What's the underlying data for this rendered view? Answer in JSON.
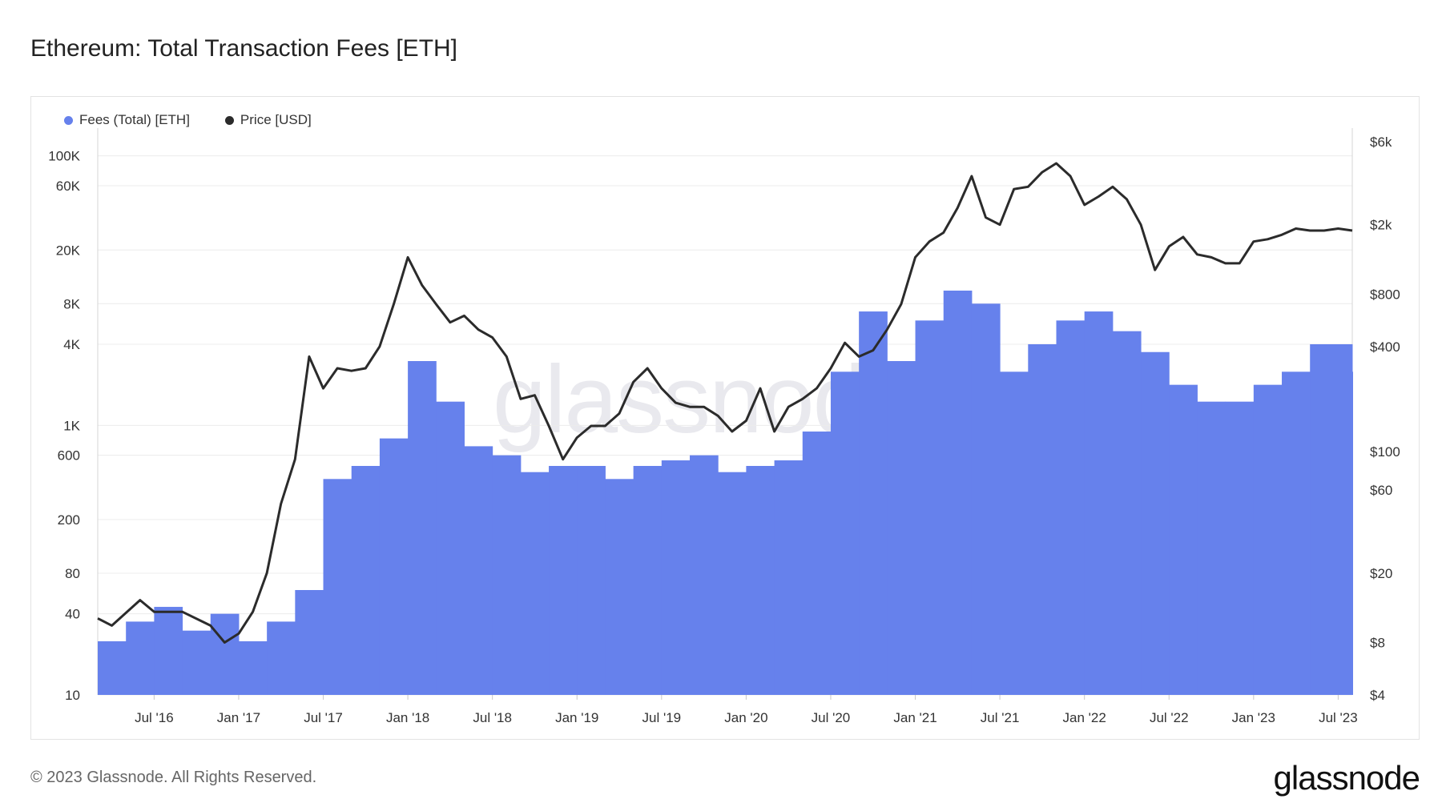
{
  "title": "Ethereum: Total Transaction Fees [ETH]",
  "footer": {
    "copyright": "© 2023 Glassnode. All Rights Reserved.",
    "brand": "glassnode"
  },
  "watermark": "glassnode",
  "colors": {
    "fees": "#6681ec",
    "price": "#2b2b2b",
    "grid": "#ececec"
  },
  "chart_data": {
    "type": "bar",
    "title": "Ethereum: Total Transaction Fees [ETH]",
    "legend_position": "top-left",
    "grid": true,
    "x_range": [
      "2016-03",
      "2023-08"
    ],
    "x_ticks": [
      {
        "label": "Jul '16",
        "date": "2016-07"
      },
      {
        "label": "Jan '17",
        "date": "2017-01"
      },
      {
        "label": "Jul '17",
        "date": "2017-07"
      },
      {
        "label": "Jan '18",
        "date": "2018-01"
      },
      {
        "label": "Jul '18",
        "date": "2018-07"
      },
      {
        "label": "Jan '19",
        "date": "2019-01"
      },
      {
        "label": "Jul '19",
        "date": "2019-07"
      },
      {
        "label": "Jan '20",
        "date": "2020-01"
      },
      {
        "label": "Jul '20",
        "date": "2020-07"
      },
      {
        "label": "Jan '21",
        "date": "2021-01"
      },
      {
        "label": "Jul '21",
        "date": "2021-07"
      },
      {
        "label": "Jan '22",
        "date": "2022-01"
      },
      {
        "label": "Jul '22",
        "date": "2022-07"
      },
      {
        "label": "Jan '23",
        "date": "2023-01"
      },
      {
        "label": "Jul '23",
        "date": "2023-07"
      }
    ],
    "y_left": {
      "scale": "log",
      "range": [
        10,
        150000
      ],
      "ticks": [
        {
          "label": "100K",
          "value": 100000
        },
        {
          "label": "60K",
          "value": 60000
        },
        {
          "label": "20K",
          "value": 20000
        },
        {
          "label": "8K",
          "value": 8000
        },
        {
          "label": "4K",
          "value": 4000
        },
        {
          "label": "1K",
          "value": 1000
        },
        {
          "label": "600",
          "value": 600
        },
        {
          "label": "200",
          "value": 200
        },
        {
          "label": "80",
          "value": 80
        },
        {
          "label": "40",
          "value": 40
        },
        {
          "label": "10",
          "value": 10
        }
      ]
    },
    "y_right": {
      "scale": "log",
      "range": [
        4,
        6800
      ],
      "ticks": [
        {
          "label": "$6k",
          "value": 6000
        },
        {
          "label": "$2k",
          "value": 2000
        },
        {
          "label": "$800",
          "value": 800
        },
        {
          "label": "$400",
          "value": 400
        },
        {
          "label": "$100",
          "value": 100
        },
        {
          "label": "$60",
          "value": 60
        },
        {
          "label": "$20",
          "value": 20
        },
        {
          "label": "$8",
          "value": 8
        },
        {
          "label": "$4",
          "value": 4
        }
      ]
    },
    "series": [
      {
        "name": "Fees (Total) [ETH]",
        "type": "bar",
        "axis": "left",
        "x": [
          "2016-03",
          "2016-05",
          "2016-07",
          "2016-09",
          "2016-11",
          "2017-01",
          "2017-03",
          "2017-05",
          "2017-07",
          "2017-09",
          "2017-11",
          "2018-01",
          "2018-03",
          "2018-05",
          "2018-07",
          "2018-09",
          "2018-11",
          "2019-01",
          "2019-03",
          "2019-05",
          "2019-07",
          "2019-09",
          "2019-11",
          "2020-01",
          "2020-03",
          "2020-05",
          "2020-07",
          "2020-09",
          "2020-11",
          "2021-01",
          "2021-03",
          "2021-05",
          "2021-07",
          "2021-09",
          "2021-11",
          "2022-01",
          "2022-03",
          "2022-05",
          "2022-07",
          "2022-09",
          "2022-11",
          "2023-01",
          "2023-03",
          "2023-05",
          "2023-08"
        ],
        "values": [
          25,
          35,
          45,
          30,
          40,
          25,
          35,
          60,
          400,
          500,
          800,
          3000,
          1500,
          700,
          600,
          450,
          500,
          500,
          400,
          500,
          550,
          600,
          450,
          500,
          550,
          900,
          2500,
          7000,
          3000,
          6000,
          10000,
          8000,
          2500,
          4000,
          6000,
          7000,
          5000,
          3500,
          2000,
          1500,
          1500,
          2000,
          2500,
          4000,
          2500
        ]
      },
      {
        "name": "Price [USD]",
        "type": "line",
        "axis": "right",
        "x": [
          "2016-03",
          "2016-04",
          "2016-06",
          "2016-07",
          "2016-09",
          "2016-11",
          "2016-12",
          "2017-01",
          "2017-02",
          "2017-03",
          "2017-04",
          "2017-05",
          "2017-06",
          "2017-07",
          "2017-08",
          "2017-09",
          "2017-10",
          "2017-11",
          "2017-12",
          "2018-01",
          "2018-02",
          "2018-03",
          "2018-04",
          "2018-05",
          "2018-06",
          "2018-07",
          "2018-08",
          "2018-09",
          "2018-10",
          "2018-11",
          "2018-12",
          "2019-01",
          "2019-02",
          "2019-03",
          "2019-04",
          "2019-05",
          "2019-06",
          "2019-07",
          "2019-08",
          "2019-09",
          "2019-10",
          "2019-11",
          "2019-12",
          "2020-01",
          "2020-02",
          "2020-03",
          "2020-04",
          "2020-05",
          "2020-06",
          "2020-07",
          "2020-08",
          "2020-09",
          "2020-10",
          "2020-11",
          "2020-12",
          "2021-01",
          "2021-02",
          "2021-03",
          "2021-04",
          "2021-05",
          "2021-06",
          "2021-07",
          "2021-08",
          "2021-09",
          "2021-10",
          "2021-11",
          "2021-12",
          "2022-01",
          "2022-02",
          "2022-03",
          "2022-04",
          "2022-05",
          "2022-06",
          "2022-07",
          "2022-08",
          "2022-09",
          "2022-10",
          "2022-11",
          "2022-12",
          "2023-01",
          "2023-02",
          "2023-03",
          "2023-04",
          "2023-05",
          "2023-06",
          "2023-07",
          "2023-08"
        ],
        "values": [
          11,
          10,
          14,
          12,
          12,
          10,
          8,
          9,
          12,
          20,
          50,
          90,
          350,
          230,
          300,
          290,
          300,
          400,
          700,
          1300,
          900,
          700,
          550,
          600,
          500,
          450,
          350,
          200,
          210,
          140,
          90,
          120,
          140,
          140,
          165,
          250,
          300,
          230,
          190,
          180,
          180,
          160,
          130,
          150,
          230,
          130,
          180,
          200,
          230,
          300,
          420,
          350,
          380,
          500,
          700,
          1300,
          1600,
          1800,
          2500,
          3800,
          2200,
          2000,
          3200,
          3300,
          4000,
          4500,
          3800,
          2600,
          2900,
          3300,
          2800,
          2000,
          1100,
          1500,
          1700,
          1350,
          1300,
          1200,
          1200,
          1600,
          1650,
          1750,
          1900,
          1850,
          1850,
          1900,
          1850
        ]
      }
    ]
  }
}
